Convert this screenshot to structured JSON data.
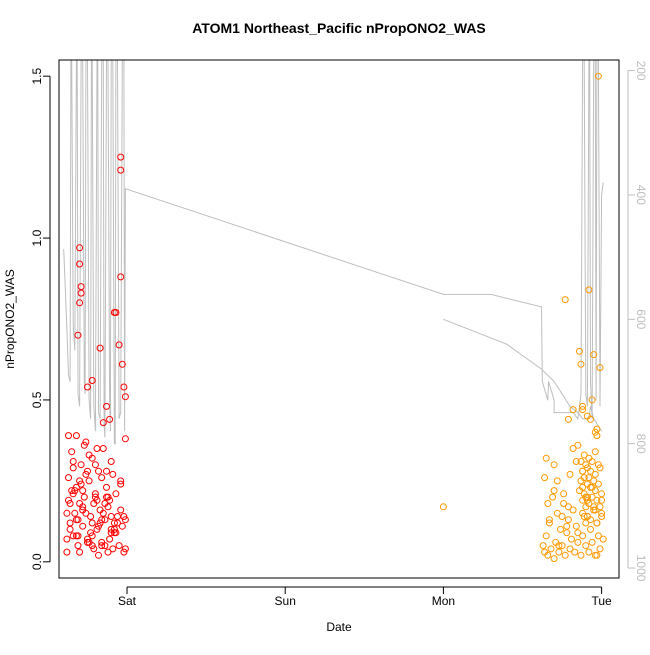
{
  "chart_data": {
    "type": "scatter",
    "title": "ATOM1 Northeast_Pacific nPropONO2_WAS",
    "xlabel": "Date",
    "ylabel": "nPropONO2_WAS",
    "x_ticks": [
      "Sat",
      "Sun",
      "Mon",
      "Tue"
    ],
    "x_tick_days": [
      1,
      2,
      3,
      4
    ],
    "xlim_days": [
      0.57,
      4.11
    ],
    "ylim": [
      -0.05,
      1.55
    ],
    "y_ticks": [
      0.0,
      0.5,
      1.0,
      1.5
    ],
    "y_tick_labels": [
      "0.0",
      "0.5",
      "1.0",
      "1.5"
    ],
    "right_axis": {
      "label": "",
      "ticks": [
        200,
        400,
        600,
        800,
        1000
      ],
      "tick_labels": [
        "200",
        "400",
        "600",
        "800",
        "1000"
      ],
      "lim": [
        1016,
        183
      ],
      "reversed": true,
      "color": "#bebebe"
    },
    "colors": {
      "series1": "#ff0000",
      "series2": "#ff9900",
      "altitude": "#bebebe",
      "frame": "#000000"
    },
    "grid": false,
    "legend": "none",
    "series": [
      {
        "color": "#ff0000",
        "x": [
          0.62,
          0.63,
          0.64,
          0.65,
          0.66,
          0.67,
          0.68,
          0.69,
          0.7,
          0.71,
          0.72,
          0.73,
          0.74,
          0.75,
          0.76,
          0.77,
          0.78,
          0.79,
          0.8,
          0.81,
          0.82,
          0.83,
          0.84,
          0.85,
          0.86,
          0.87,
          0.88,
          0.89,
          0.9,
          0.91,
          0.92,
          0.62,
          0.64,
          0.66,
          0.68,
          0.7,
          0.72,
          0.74,
          0.76,
          0.78,
          0.8,
          0.82,
          0.84,
          0.86,
          0.88,
          0.9,
          0.92,
          0.63,
          0.67,
          0.71,
          0.75,
          0.79,
          0.83,
          0.87,
          0.91,
          0.65,
          0.69,
          0.73,
          0.77,
          0.81,
          0.85,
          0.89,
          0.93,
          0.94,
          0.95,
          0.96,
          0.97,
          0.98,
          0.99,
          0.63,
          0.66,
          0.69,
          0.72,
          0.75,
          0.78,
          0.81,
          0.84,
          0.87,
          0.9,
          0.93,
          0.96,
          0.99,
          0.64,
          0.68,
          0.72,
          0.76,
          0.8,
          0.84,
          0.88,
          0.92,
          0.96,
          0.62,
          0.7,
          0.78,
          0.86,
          0.94,
          0.74,
          0.82,
          0.9,
          0.98,
          0.66,
          0.68,
          0.69,
          0.7,
          0.7,
          0.71,
          0.71,
          0.7,
          0.75,
          0.78,
          0.83,
          0.85,
          0.87,
          0.89,
          0.92,
          0.93,
          0.95,
          0.96,
          0.96,
          0.96,
          0.97,
          0.98,
          0.99,
          0.99
        ],
        "y": [
          0.15,
          0.26,
          0.12,
          0.34,
          0.08,
          0.22,
          0.39,
          0.05,
          0.18,
          0.3,
          0.11,
          0.2,
          0.37,
          0.07,
          0.25,
          0.14,
          0.32,
          0.04,
          0.21,
          0.1,
          0.28,
          0.16,
          0.06,
          0.35,
          0.13,
          0.23,
          0.03,
          0.19,
          0.09,
          0.27,
          0.12,
          0.07,
          0.18,
          0.29,
          0.13,
          0.03,
          0.22,
          0.15,
          0.33,
          0.08,
          0.2,
          0.11,
          0.26,
          0.05,
          0.17,
          0.31,
          0.1,
          0.39,
          0.15,
          0.24,
          0.06,
          0.18,
          0.12,
          0.28,
          0.04,
          0.22,
          0.13,
          0.36,
          0.09,
          0.19,
          0.15,
          0.07,
          0.21,
          0.14,
          0.05,
          0.25,
          0.11,
          0.03,
          0.13,
          0.19,
          0.31,
          0.08,
          0.16,
          0.28,
          0.12,
          0.35,
          0.05,
          0.2,
          0.14,
          0.09,
          0.24,
          0.04,
          0.1,
          0.23,
          0.17,
          0.06,
          0.3,
          0.13,
          0.2,
          0.09,
          0.16,
          0.03,
          0.25,
          0.05,
          0.18,
          0.12,
          0.27,
          0.02,
          0.1,
          0.14,
          0.21,
          0.08,
          0.7,
          0.97,
          0.92,
          0.83,
          0.85,
          0.8,
          0.54,
          0.56,
          0.66,
          0.43,
          0.48,
          0.44,
          0.77,
          0.77,
          0.67,
          1.25,
          1.21,
          0.88,
          0.61,
          0.54,
          0.51,
          0.38
        ]
      },
      {
        "color": "#ff9900",
        "x": [
          3.63,
          3.64,
          3.65,
          3.66,
          3.67,
          3.68,
          3.69,
          3.7,
          3.71,
          3.72,
          3.73,
          3.74,
          3.75,
          3.76,
          3.77,
          3.78,
          3.79,
          3.8,
          3.81,
          3.82,
          3.83,
          3.84,
          3.85,
          3.86,
          3.87,
          3.88,
          3.89,
          3.9,
          3.91,
          3.92,
          3.93,
          3.94,
          3.95,
          3.96,
          3.97,
          3.98,
          3.99,
          4.0,
          4.01,
          3.64,
          3.67,
          3.7,
          3.73,
          3.76,
          3.79,
          3.82,
          3.85,
          3.88,
          3.91,
          3.94,
          3.97,
          4.0,
          3.66,
          3.72,
          3.78,
          3.84,
          3.9,
          3.96,
          3.65,
          3.7,
          3.75,
          3.8,
          3.85,
          3.87,
          3.87,
          3.88,
          3.88,
          3.88,
          3.88,
          3.89,
          3.89,
          3.89,
          3.9,
          3.9,
          3.9,
          3.91,
          3.91,
          3.91,
          3.91,
          3.92,
          3.92,
          3.92,
          3.93,
          3.93,
          3.93,
          3.94,
          3.94,
          3.95,
          3.95,
          3.96,
          3.96,
          3.96,
          3.97,
          3.97,
          3.98,
          3.98,
          3.99,
          3.99,
          4.0,
          4.0,
          3.86,
          3.87,
          3.88,
          3.88,
          3.91,
          3.93,
          3.97,
          3.82,
          3.79,
          3.77,
          3.92,
          3.94,
          3.95,
          3.96,
          3.97,
          3.98,
          3.99,
          3.0
        ],
        "y": [
          0.05,
          0.03,
          0.08,
          0.02,
          0.12,
          0.04,
          0.2,
          0.01,
          0.06,
          0.15,
          0.03,
          0.1,
          0.05,
          0.18,
          0.02,
          0.09,
          0.13,
          0.04,
          0.07,
          0.16,
          0.03,
          0.11,
          0.06,
          0.22,
          0.02,
          0.08,
          0.14,
          0.05,
          0.19,
          0.03,
          0.1,
          0.06,
          0.17,
          0.02,
          0.12,
          0.08,
          0.04,
          0.15,
          0.07,
          0.26,
          0.13,
          0.3,
          0.05,
          0.21,
          0.17,
          0.35,
          0.09,
          0.28,
          0.14,
          0.23,
          0.02,
          0.19,
          0.18,
          0.25,
          0.11,
          0.31,
          0.2,
          0.16,
          0.32,
          0.22,
          0.14,
          0.27,
          0.36,
          0.25,
          0.31,
          0.19,
          0.23,
          0.28,
          0.15,
          0.33,
          0.21,
          0.26,
          0.12,
          0.3,
          0.17,
          0.24,
          0.29,
          0.2,
          0.14,
          0.32,
          0.26,
          0.18,
          0.23,
          0.28,
          0.13,
          0.31,
          0.2,
          0.25,
          0.16,
          0.34,
          0.22,
          0.27,
          0.19,
          0.12,
          0.3,
          0.24,
          0.17,
          0.29,
          0.21,
          0.14,
          0.65,
          0.61,
          0.48,
          0.47,
          0.45,
          0.44,
          0.41,
          0.47,
          0.44,
          0.81,
          0.84,
          0.5,
          0.64,
          0.4,
          0.39,
          1.5,
          0.6,
          0.17
        ]
      }
    ],
    "altitude_trace": {
      "color": "#bebebe",
      "segments": [
        {
          "x": [
            0.6,
            0.62,
            0.63,
            0.64,
            0.645,
            0.65,
            0.66,
            0.67,
            0.68,
            0.685,
            0.69,
            0.7,
            0.71,
            0.72,
            0.73,
            0.735,
            0.74,
            0.75,
            0.76,
            0.77,
            0.775,
            0.78,
            0.79,
            0.8,
            0.81,
            0.815,
            0.82,
            0.83,
            0.84,
            0.85,
            0.855,
            0.86,
            0.87,
            0.88,
            0.89,
            0.895,
            0.9,
            0.91,
            0.92,
            0.925,
            0.93,
            0.94,
            0.95,
            0.96,
            0.97,
            0.98,
            0.985,
            0.99,
            3.0,
            3.3,
            3.62,
            3.625,
            3.66,
            3.665,
            3.7,
            3.7,
            3.74,
            3.78,
            3.82,
            3.85,
            3.86,
            3.87,
            3.88,
            3.885,
            3.89,
            3.9,
            3.91,
            3.92,
            3.925,
            3.93,
            3.94,
            3.95,
            3.96,
            3.965,
            3.97,
            3.98,
            3.99,
            4.0,
            4.01
          ],
          "alt": [
            487,
            616,
            690,
            700,
            183,
            183,
            610,
            650,
            183,
            183,
            720,
            740,
            183,
            183,
            700,
            720,
            183,
            183,
            730,
            760,
            183,
            183,
            740,
            780,
            183,
            183,
            750,
            760,
            183,
            183,
            770,
            790,
            183,
            183,
            730,
            780,
            183,
            183,
            800,
            800,
            183,
            183,
            760,
            750,
            183,
            183,
            780,
            390,
            560,
            560,
            580,
            700,
            730,
            700,
            730,
            750,
            750,
            750,
            750,
            760,
            740,
            720,
            183,
            183,
            183,
            720,
            740,
            183,
            183,
            700,
            760,
            183,
            183,
            730,
            183,
            183,
            740,
            400,
            380
          ]
        },
        {
          "x": [
            3.0,
            3.4,
            3.62,
            3.7,
            3.75,
            3.8,
            3.85,
            3.88,
            3.92,
            3.93,
            3.95,
            4.0
          ],
          "alt": [
            600,
            640,
            680,
            700,
            720,
            740,
            750,
            760,
            760,
            740,
            760,
            780
          ]
        }
      ]
    }
  }
}
